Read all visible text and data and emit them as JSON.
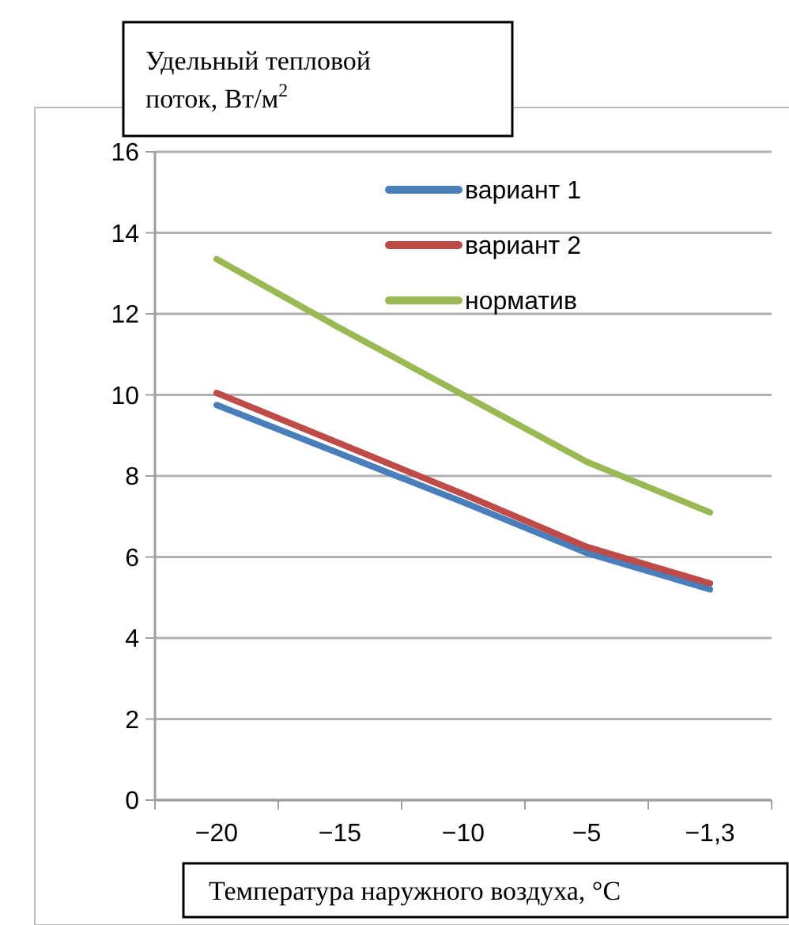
{
  "chart_data": {
    "type": "line",
    "ylabel": "Удельный тепловой поток, Вт/м$^{2}$",
    "xlabel": "Температура наружного воздуха, °С",
    "categories": [
      "−20",
      "−15",
      "−10",
      "−5",
      "−1,3"
    ],
    "series": [
      {
        "name": "вариант 1",
        "color": "#4a7ebb",
        "values": [
          9.75,
          8.55,
          7.35,
          6.1,
          5.2
        ]
      },
      {
        "name": "вариант 2",
        "color": "#be4b48",
        "values": [
          10.05,
          8.8,
          7.55,
          6.25,
          5.35
        ]
      },
      {
        "name": "норматив",
        "color": "#98b954",
        "values": [
          13.35,
          11.65,
          10.0,
          8.35,
          7.1
        ]
      }
    ],
    "ylim": [
      0,
      16
    ],
    "yticks": [
      0,
      2,
      4,
      6,
      8,
      10,
      12,
      14,
      16
    ],
    "grid": "y",
    "legend": "top right",
    "marker": "none",
    "line_style": "solid"
  }
}
